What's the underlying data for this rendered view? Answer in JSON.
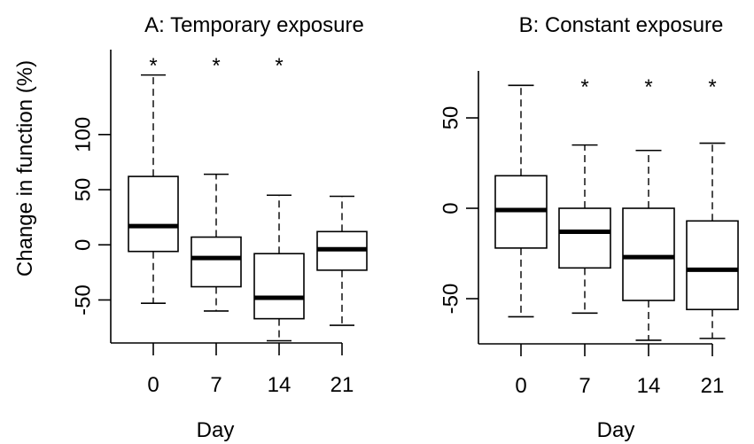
{
  "chart_data": [
    {
      "type": "boxplot",
      "title": "A: Temporary exposure",
      "xlabel": "Day",
      "ylabel": "Change in function (%)",
      "categories": [
        "0",
        "7",
        "14",
        "21"
      ],
      "yticks": [
        "-50",
        "0",
        "50",
        "100"
      ],
      "ylim": [
        -89,
        177
      ],
      "significance": [
        "*",
        "*",
        "*",
        ""
      ],
      "boxes": [
        {
          "min": -53,
          "q1": -6,
          "median": 17,
          "q3": 62,
          "max": 154
        },
        {
          "min": -60,
          "q1": -38,
          "median": -12,
          "q3": 7,
          "max": 64
        },
        {
          "min": -87,
          "q1": -67,
          "median": -48,
          "q3": -8,
          "max": 45
        },
        {
          "min": -73,
          "q1": -23,
          "median": -4,
          "q3": 12,
          "max": 44
        }
      ]
    },
    {
      "type": "boxplot",
      "title": "B: Constant exposure",
      "xlabel": "Day",
      "ylabel": "",
      "categories": [
        "0",
        "7",
        "14",
        "21"
      ],
      "yticks": [
        "-50",
        "0",
        "50"
      ],
      "ylim": [
        -75,
        76
      ],
      "significance": [
        "",
        "*",
        "*",
        "*"
      ],
      "boxes": [
        {
          "min": -60,
          "q1": -22,
          "median": -1,
          "q3": 18,
          "max": 68
        },
        {
          "min": -58,
          "q1": -33,
          "median": -13,
          "q3": 0,
          "max": 35
        },
        {
          "min": -73,
          "q1": -51,
          "median": -27,
          "q3": 0,
          "max": 32
        },
        {
          "min": -72,
          "q1": -56,
          "median": -34,
          "q3": -7,
          "max": 36
        }
      ]
    }
  ]
}
